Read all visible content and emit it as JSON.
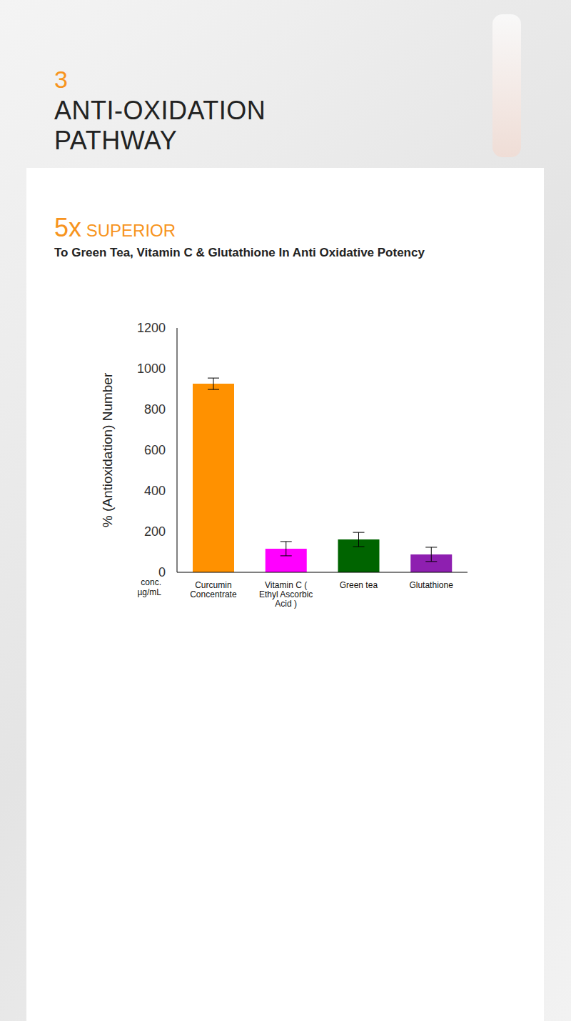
{
  "header": {
    "number": "3",
    "title": "ANTI-OXIDATION PATHWAY"
  },
  "chart_data": {
    "type": "bar",
    "title": "5x SUPERIOR",
    "subtitle": "To Green Tea, Vitamin C & Glutathione In Anti Oxidative Potency",
    "ylabel": "% (Antioxidation) Number",
    "xlabel": "conc. µg/mL",
    "categories": [
      "Curcumin Concentrate",
      "Vitamin C ( Ethyl Ascorbic Acid )",
      "Green tea",
      "Glutathione"
    ],
    "values": [
      926,
      116,
      161,
      88
    ],
    "errors": [
      28,
      35,
      35,
      35
    ],
    "colors": [
      "#ff9100",
      "#ff00ff",
      "#006400",
      "#8e1fb0"
    ],
    "ylim": [
      0,
      1200
    ],
    "yticks": [
      0,
      200,
      400,
      600,
      800,
      1000,
      1200
    ],
    "grid": false
  }
}
